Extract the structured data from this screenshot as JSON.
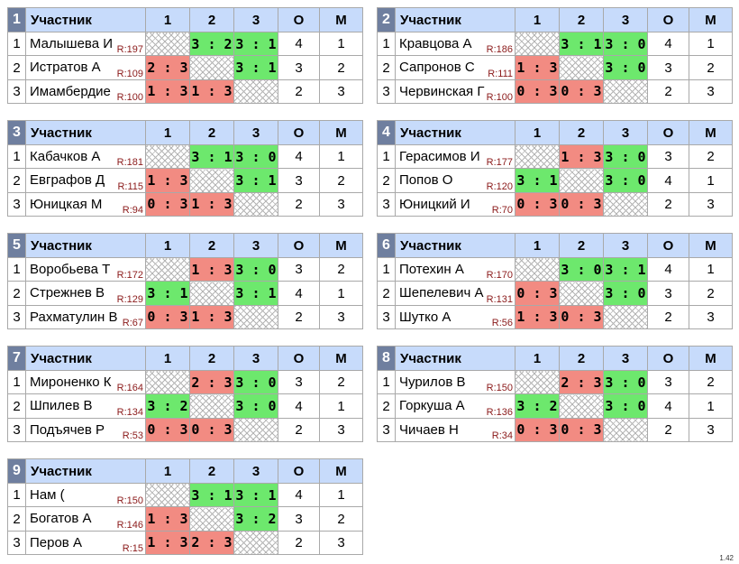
{
  "headers": {
    "participant": "Участник",
    "c1": "1",
    "c2": "2",
    "c3": "3",
    "points": "О",
    "place": "М"
  },
  "rating_prefix": "R:",
  "groups": [
    {
      "num": "1",
      "players": [
        {
          "n": "1",
          "name": "Малышева И",
          "rating": "R:197",
          "results": [
            "",
            "3 : 2",
            "3 : 1"
          ],
          "points": "4",
          "place": "1"
        },
        {
          "n": "2",
          "name": "Истратов А",
          "rating": "R:109",
          "results": [
            "2 : 3",
            "",
            "3 : 1"
          ],
          "points": "3",
          "place": "2"
        },
        {
          "n": "3",
          "name": "Имамбердие",
          "rating": "R:100",
          "results": [
            "1 : 3",
            "1 : 3",
            ""
          ],
          "points": "2",
          "place": "3"
        }
      ]
    },
    {
      "num": "2",
      "players": [
        {
          "n": "1",
          "name": "Кравцова А",
          "rating": "R:186",
          "results": [
            "",
            "3 : 1",
            "3 : 0"
          ],
          "points": "4",
          "place": "1"
        },
        {
          "n": "2",
          "name": "Сапронов С",
          "rating": "R:111",
          "results": [
            "1 : 3",
            "",
            "3 : 0"
          ],
          "points": "3",
          "place": "2"
        },
        {
          "n": "3",
          "name": "Червинская Г",
          "rating": "R:100",
          "results": [
            "0 : 3",
            "0 : 3",
            ""
          ],
          "points": "2",
          "place": "3"
        }
      ]
    },
    {
      "num": "3",
      "players": [
        {
          "n": "1",
          "name": "Кабачков А",
          "rating": "R:181",
          "results": [
            "",
            "3 : 1",
            "3 : 0"
          ],
          "points": "4",
          "place": "1"
        },
        {
          "n": "2",
          "name": "Евграфов Д",
          "rating": "R:115",
          "results": [
            "1 : 3",
            "",
            "3 : 1"
          ],
          "points": "3",
          "place": "2"
        },
        {
          "n": "3",
          "name": "Юницкая М",
          "rating": "R:94",
          "results": [
            "0 : 3",
            "1 : 3",
            ""
          ],
          "points": "2",
          "place": "3"
        }
      ]
    },
    {
      "num": "4",
      "players": [
        {
          "n": "1",
          "name": "Герасимов И",
          "rating": "R:177",
          "results": [
            "",
            "1 : 3",
            "3 : 0"
          ],
          "points": "3",
          "place": "2"
        },
        {
          "n": "2",
          "name": "Попов О",
          "rating": "R:120",
          "results": [
            "3 : 1",
            "",
            "3 : 0"
          ],
          "points": "4",
          "place": "1"
        },
        {
          "n": "3",
          "name": "Юницкий И",
          "rating": "R:70",
          "results": [
            "0 : 3",
            "0 : 3",
            ""
          ],
          "points": "2",
          "place": "3"
        }
      ]
    },
    {
      "num": "5",
      "players": [
        {
          "n": "1",
          "name": "Воробьева Т",
          "rating": "R:172",
          "results": [
            "",
            "1 : 3",
            "3 : 0"
          ],
          "points": "3",
          "place": "2"
        },
        {
          "n": "2",
          "name": "Стрежнев В",
          "rating": "R:129",
          "results": [
            "3 : 1",
            "",
            "3 : 1"
          ],
          "points": "4",
          "place": "1"
        },
        {
          "n": "3",
          "name": "Рахматулин В",
          "rating": "R:67",
          "results": [
            "0 : 3",
            "1 : 3",
            ""
          ],
          "points": "2",
          "place": "3"
        }
      ]
    },
    {
      "num": "6",
      "players": [
        {
          "n": "1",
          "name": "Потехин А",
          "rating": "R:170",
          "results": [
            "",
            "3 : 0",
            "3 : 1"
          ],
          "points": "4",
          "place": "1"
        },
        {
          "n": "2",
          "name": "Шепелевич А",
          "rating": "R:131",
          "results": [
            "0 : 3",
            "",
            "3 : 0"
          ],
          "points": "3",
          "place": "2"
        },
        {
          "n": "3",
          "name": "Шутко А",
          "rating": "R:56",
          "results": [
            "1 : 3",
            "0 : 3",
            ""
          ],
          "points": "2",
          "place": "3"
        }
      ]
    },
    {
      "num": "7",
      "players": [
        {
          "n": "1",
          "name": "Мироненко К",
          "rating": "R:164",
          "results": [
            "",
            "2 : 3",
            "3 : 0"
          ],
          "points": "3",
          "place": "2"
        },
        {
          "n": "2",
          "name": "Шпилев В",
          "rating": "R:134",
          "results": [
            "3 : 2",
            "",
            "3 : 0"
          ],
          "points": "4",
          "place": "1"
        },
        {
          "n": "3",
          "name": "Подъячев Р",
          "rating": "R:53",
          "results": [
            "0 : 3",
            "0 : 3",
            ""
          ],
          "points": "2",
          "place": "3"
        }
      ]
    },
    {
      "num": "8",
      "players": [
        {
          "n": "1",
          "name": "Чурилов В",
          "rating": "R:150",
          "results": [
            "",
            "2 : 3",
            "3 : 0"
          ],
          "points": "3",
          "place": "2"
        },
        {
          "n": "2",
          "name": "Горкуша А",
          "rating": "R:136",
          "results": [
            "3 : 2",
            "",
            "3 : 0"
          ],
          "points": "4",
          "place": "1"
        },
        {
          "n": "3",
          "name": "Чичаев Н",
          "rating": "R:34",
          "results": [
            "0 : 3",
            "0 : 3",
            ""
          ],
          "points": "2",
          "place": "3"
        }
      ]
    },
    {
      "num": "9",
      "players": [
        {
          "n": "1",
          "name": "Нам (",
          "rating": "R:150",
          "results": [
            "",
            "3 : 1",
            "3 : 1"
          ],
          "points": "4",
          "place": "1"
        },
        {
          "n": "2",
          "name": "Богатов А",
          "rating": "R:146",
          "results": [
            "1 : 3",
            "",
            "3 : 2"
          ],
          "points": "3",
          "place": "2"
        },
        {
          "n": "3",
          "name": "Перов А",
          "rating": "R:15",
          "results": [
            "1 : 3",
            "2 : 3",
            ""
          ],
          "points": "2",
          "place": "3"
        }
      ]
    }
  ],
  "colors": {
    "win": "#6de86d",
    "loss": "#f28b82",
    "header": "#c7dbfb",
    "group_number": "#6f7f9f"
  },
  "version": "1.42"
}
